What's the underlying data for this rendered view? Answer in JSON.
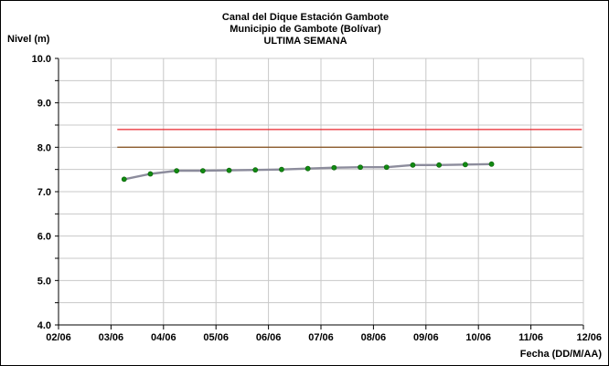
{
  "chart_data": {
    "type": "line",
    "title_lines": [
      "Canal del Dique  Estación Gambote",
      "Municipio de Gambote (Bolívar)",
      "ULTIMA SEMANA"
    ],
    "ylabel": "Nivel (m)",
    "xlabel": "Fecha (DD/M/AA)",
    "ylim": [
      4.0,
      10.0
    ],
    "yticks": [
      "4.0",
      "5.0",
      "6.0",
      "7.0",
      "8.0",
      "9.0",
      "10.0"
    ],
    "xlim": [
      0,
      10
    ],
    "xticks": [
      "02/06",
      "03/06",
      "04/06",
      "05/06",
      "06/06",
      "07/06",
      "08/06",
      "09/06",
      "10/06",
      "11/06",
      "12/06"
    ],
    "grid": true,
    "reference_lines": [
      {
        "y": 8.4,
        "color": "#e8262c",
        "x_range": [
          1.12,
          9.97
        ]
      },
      {
        "y": 8.0,
        "color": "#8b5a2b",
        "x_range": [
          1.12,
          9.97
        ]
      }
    ],
    "series": [
      {
        "line_color": "#8c8c9c",
        "marker_color": "#118a11",
        "x": [
          1.25,
          1.75,
          2.25,
          2.75,
          3.25,
          3.75,
          4.25,
          4.75,
          5.25,
          5.75,
          6.25,
          6.75,
          7.25,
          7.75,
          8.25
        ],
        "y": [
          7.28,
          7.4,
          7.47,
          7.47,
          7.48,
          7.49,
          7.5,
          7.52,
          7.54,
          7.55,
          7.55,
          7.6,
          7.6,
          7.61,
          7.62
        ]
      }
    ]
  }
}
